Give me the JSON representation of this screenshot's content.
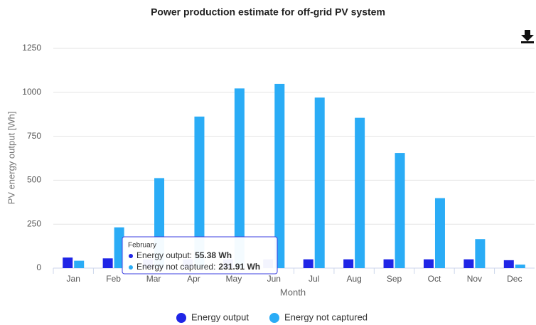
{
  "chart_data": {
    "type": "bar",
    "title": "Power production estimate for off-grid PV system",
    "x_label": "Month",
    "y_label": "PV energy output [Wh]",
    "categories": [
      "Jan",
      "Feb",
      "Mar",
      "Apr",
      "May",
      "Jun",
      "Jul",
      "Aug",
      "Sep",
      "Oct",
      "Nov",
      "Dec"
    ],
    "series": [
      {
        "name": "Energy output",
        "color": "#1f25e6",
        "values": [
          60,
          55.38,
          50,
          50,
          50,
          50,
          50,
          50,
          50,
          50,
          50,
          45
        ]
      },
      {
        "name": "Energy not captured",
        "color": "#2aacf6",
        "values": [
          42,
          231.91,
          512,
          862,
          1022,
          1048,
          970,
          855,
          655,
          398,
          165,
          20
        ]
      }
    ],
    "ylim": [
      0,
      1250
    ],
    "yticks": [
      0,
      250,
      500,
      750,
      1000,
      1250
    ],
    "grid": true,
    "legend": "bottom",
    "tooltip": {
      "title": "February",
      "rows": [
        {
          "label": "Energy output:",
          "value": "55.38 Wh"
        },
        {
          "label": "Energy not captured:",
          "value": "231.91 Wh"
        }
      ]
    }
  }
}
